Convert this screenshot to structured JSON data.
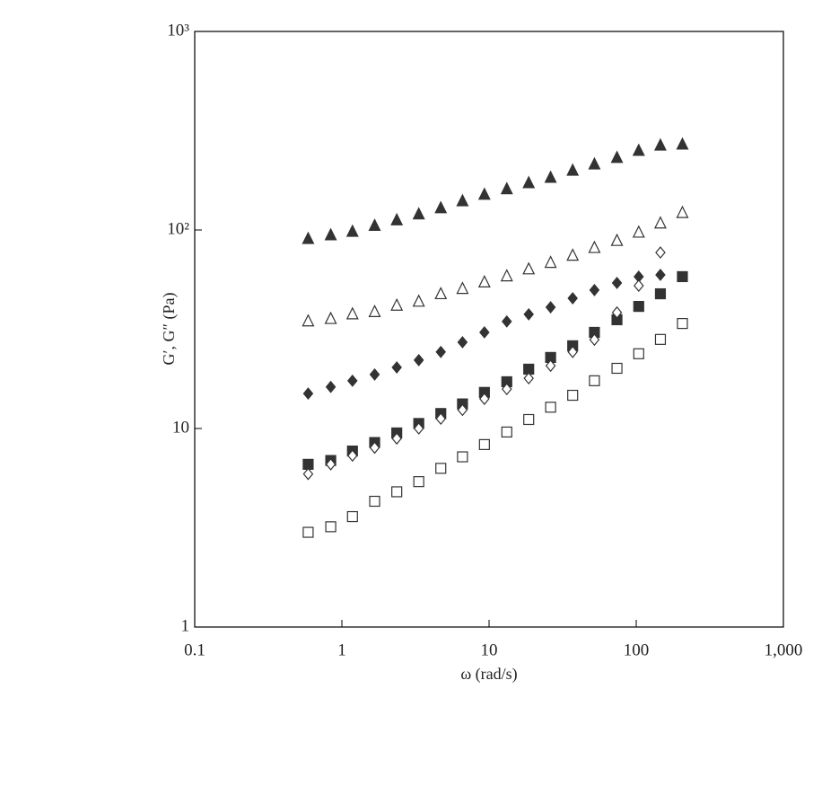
{
  "chart_data": {
    "type": "scatter",
    "x_label": "ω (rad/s)",
    "y_label": "G′, G″ (Pa)",
    "x_log": true,
    "y_log": true,
    "xlim": [
      0.1,
      1000
    ],
    "ylim": [
      1,
      1000
    ],
    "xticks": [
      0.1,
      1,
      10,
      100,
      {
        "value": 1000,
        "label": "1,000"
      }
    ],
    "yticks": [
      1,
      10,
      {
        "value": 100,
        "label": "10²"
      },
      {
        "value": 1000,
        "label": "10³"
      }
    ],
    "x": [
      0.59,
      0.84,
      1.18,
      1.67,
      2.36,
      3.33,
      4.7,
      6.6,
      9.3,
      13.2,
      18.6,
      26.2,
      37,
      52,
      74,
      104,
      146,
      206
    ],
    "series": [
      {
        "marker": "triangle",
        "filled": true,
        "color": "#333333",
        "values": [
          91,
          95,
          99,
          106,
          113,
          121,
          130,
          141,
          152,
          162,
          174,
          185,
          201,
          216,
          233,
          253,
          269,
          272
        ]
      },
      {
        "marker": "triangle",
        "filled": false,
        "color": "#333333",
        "values": [
          35,
          36,
          38,
          39,
          42,
          44,
          48,
          51,
          55,
          59,
          64,
          69,
          75,
          82,
          89,
          98,
          109,
          123
        ]
      },
      {
        "marker": "diamond",
        "filled": true,
        "color": "#333333",
        "values": [
          15,
          16.2,
          17.4,
          18.7,
          20.3,
          22.1,
          24.3,
          27.2,
          30.5,
          34.6,
          37.6,
          40.8,
          45.3,
          49.8,
          54.1,
          58.2,
          59.4,
          null
        ]
      },
      {
        "marker": "square",
        "filled": true,
        "color": "#333333",
        "values": [
          6.6,
          6.9,
          7.7,
          8.5,
          9.5,
          10.6,
          11.9,
          13.3,
          15.2,
          17.2,
          19.9,
          22.8,
          26.1,
          30.5,
          35.3,
          41.2,
          47.7,
          58.2
        ]
      },
      {
        "marker": "diamond",
        "filled": false,
        "color": "#333333",
        "values": [
          5.9,
          6.6,
          7.3,
          8.0,
          8.9,
          10.0,
          11.2,
          12.4,
          14.1,
          15.8,
          17.9,
          20.7,
          24.3,
          28,
          38.4,
          52.4,
          77,
          null
        ]
      },
      {
        "marker": "square",
        "filled": false,
        "color": "#333333",
        "values": [
          3.0,
          3.2,
          3.6,
          4.3,
          4.8,
          5.4,
          6.3,
          7.2,
          8.3,
          9.6,
          11.1,
          12.8,
          14.7,
          17.4,
          20.1,
          23.8,
          28.1,
          33.8
        ]
      }
    ]
  }
}
